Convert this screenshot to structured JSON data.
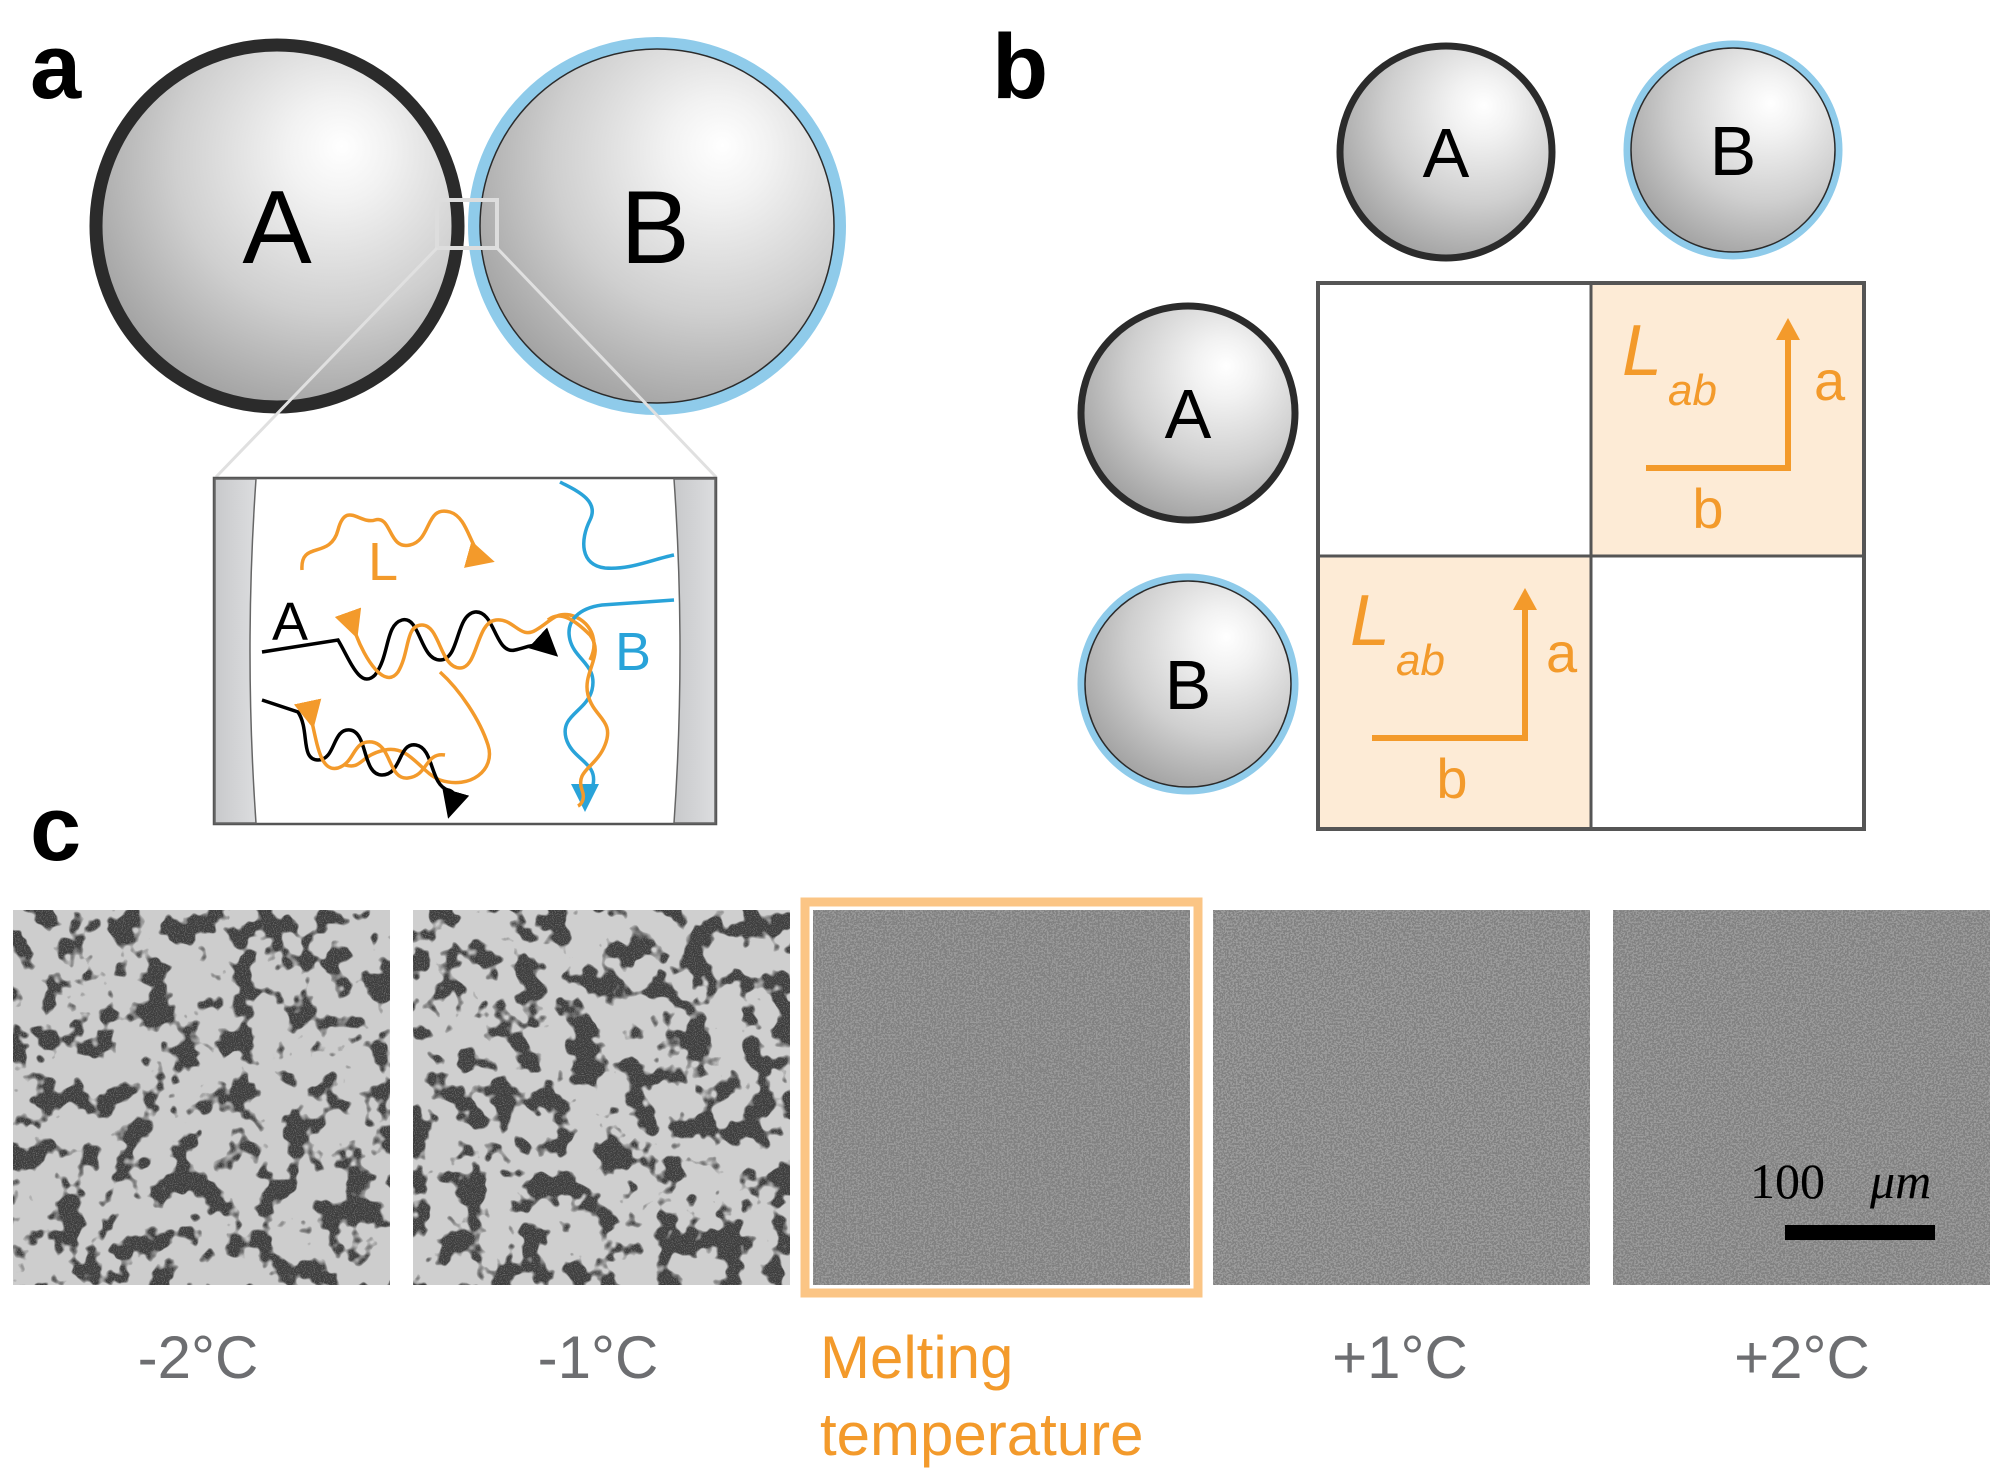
{
  "colors": {
    "particle_a_border": "#2b2b2b",
    "particle_b_border": "#8fcbea",
    "linker": "#f39a2b",
    "strand_a": "#000000",
    "strand_b": "#29a3d9",
    "cell_highlight": "#fdebd6",
    "grid_line": "#555555",
    "temp_text": "#6d6e71"
  },
  "panel_a": {
    "letter": "a",
    "sphere_a_label": "A",
    "sphere_b_label": "B",
    "inset": {
      "linker_label": "L",
      "strand_a_label": "A",
      "strand_b_label": "B"
    }
  },
  "panel_b": {
    "letter": "b",
    "col_headers": [
      "A",
      "B"
    ],
    "row_headers": [
      "A",
      "B"
    ],
    "cells": [
      {
        "row": "A",
        "col": "A",
        "filled": false
      },
      {
        "row": "A",
        "col": "B",
        "filled": true,
        "symbol": "L",
        "subscript": "ab",
        "vertical_label": "a",
        "horizontal_label": "b"
      },
      {
        "row": "B",
        "col": "A",
        "filled": true,
        "symbol": "L",
        "subscript": "ab",
        "vertical_label": "a",
        "horizontal_label": "b"
      },
      {
        "row": "B",
        "col": "B",
        "filled": false
      }
    ]
  },
  "panel_c": {
    "letter": "c",
    "images": [
      {
        "label": "-2°C",
        "state": "aggregated",
        "highlight": false
      },
      {
        "label": "-1°C",
        "state": "aggregated",
        "highlight": false
      },
      {
        "label_lines": [
          "Melting",
          "temperature"
        ],
        "state": "dispersed",
        "highlight": true
      },
      {
        "label": "+1°C",
        "state": "dispersed",
        "highlight": false
      },
      {
        "label": "+2°C",
        "state": "dispersed",
        "highlight": false
      }
    ],
    "scale_bar": {
      "value": "100",
      "unit": "μm"
    }
  }
}
